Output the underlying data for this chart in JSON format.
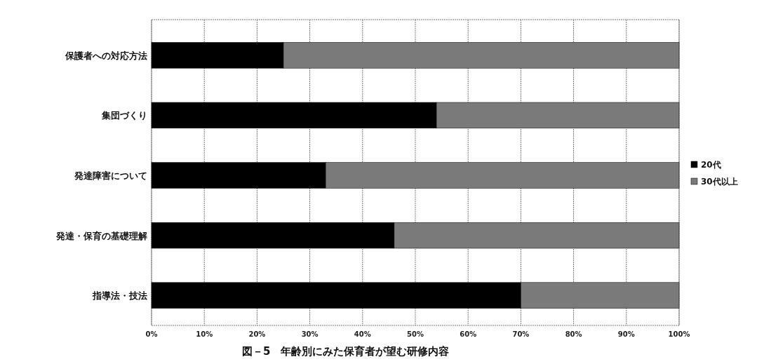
{
  "chart_data": {
    "type": "bar",
    "orientation": "horizontal",
    "stacked": true,
    "title": "図－5　年齢別にみた保育者が望む研修内容",
    "categories": [
      "保護者への対応方法",
      "集団づくり",
      "発達障害について",
      "発達・保育の基礎理解",
      "指導法・技法"
    ],
    "series": [
      {
        "name": "20代",
        "color": "#000000",
        "values": [
          25,
          54,
          33,
          46,
          70
        ]
      },
      {
        "name": "30代以上",
        "color": "#7a7a7a",
        "values": [
          75,
          46,
          67,
          54,
          30
        ]
      }
    ],
    "xlim": [
      0,
      100
    ],
    "xticks": [
      {
        "value": 0,
        "label": "0%"
      },
      {
        "value": 10,
        "label": "10%"
      },
      {
        "value": 20,
        "label": "20%"
      },
      {
        "value": 30,
        "label": "30%"
      },
      {
        "value": 40,
        "label": "40%"
      },
      {
        "value": 50,
        "label": "50%"
      },
      {
        "value": 60,
        "label": "60%"
      },
      {
        "value": 70,
        "label": "70%"
      },
      {
        "value": 80,
        "label": "80%"
      },
      {
        "value": 90,
        "label": "90%"
      },
      {
        "value": 100,
        "label": "100%"
      }
    ],
    "grid": "x",
    "legend": "right"
  }
}
